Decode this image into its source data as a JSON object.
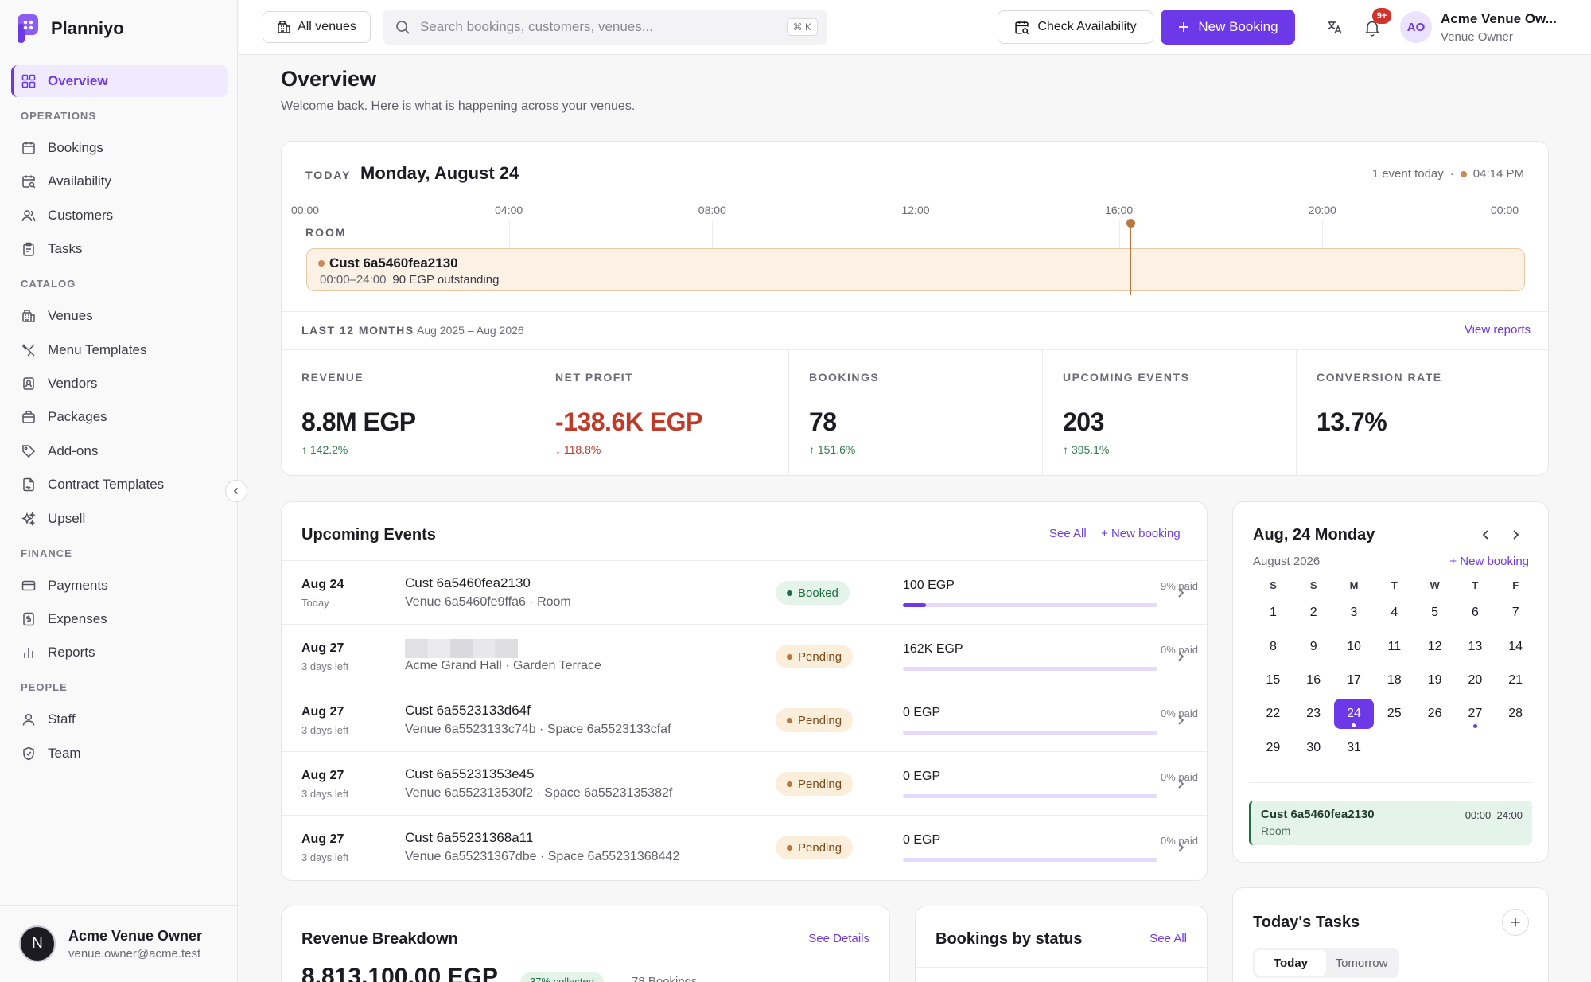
{
  "brand": {
    "name": "Planniyo"
  },
  "sidebar": {
    "overview": "Overview",
    "sections": {
      "operations": "OPERATIONS",
      "catalog": "CATALOG",
      "finance": "FINANCE",
      "people": "PEOPLE"
    },
    "operations": [
      "Bookings",
      "Availability",
      "Customers",
      "Tasks"
    ],
    "catalog": [
      "Venues",
      "Menu Templates",
      "Vendors",
      "Packages",
      "Add-ons",
      "Contract Templates",
      "Upsell"
    ],
    "finance": [
      "Payments",
      "Expenses",
      "Reports"
    ],
    "people": [
      "Staff",
      "Team"
    ],
    "user": {
      "initial": "N",
      "name": "Acme Venue Owner",
      "email": "venue.owner@acme.test"
    }
  },
  "header": {
    "venues_label": "All venues",
    "search_placeholder": "Search bookings, customers, venues...",
    "shortcut": "⌘ K",
    "check_label": "Check Availability",
    "new_label": "New Booking",
    "notif_badge": "9+",
    "avatar": "AO",
    "user_name": "Acme Venue Ow...",
    "user_role": "Venue Owner"
  },
  "page": {
    "title": "Overview",
    "subtitle": "Welcome back. Here is what is happening across your venues."
  },
  "today": {
    "label": "TODAY",
    "date": "Monday, August 24",
    "events": "1 event today",
    "time": "04:14 PM",
    "hours": [
      "00:00",
      "04:00",
      "08:00",
      "12:00",
      "16:00",
      "20:00",
      "00:00"
    ],
    "room": "ROOM",
    "event": {
      "name": "Cust 6a5460fea2130",
      "time": "00:00–24:00",
      "outstanding": "90 EGP outstanding"
    },
    "now_fraction": 0.676
  },
  "range": {
    "label": "LAST 12 MONTHS",
    "value": "Aug 2025 – Aug 2026",
    "link": "View reports"
  },
  "kpis": [
    {
      "label": "REVENUE",
      "value": "8.8M EGP",
      "change": "142.2%",
      "dir": "up"
    },
    {
      "label": "NET PROFIT",
      "value": "-138.6K EGP",
      "change": "118.8%",
      "dir": "down"
    },
    {
      "label": "BOOKINGS",
      "value": "78",
      "change": "151.6%",
      "dir": "up"
    },
    {
      "label": "UPCOMING EVENTS",
      "value": "203",
      "change": "395.1%",
      "dir": "up"
    },
    {
      "label": "CONVERSION RATE",
      "value": "13.7%",
      "change": "",
      "dir": ""
    }
  ],
  "upcoming": {
    "title": "Upcoming Events",
    "see_all": "See All",
    "new": "New booking",
    "rows": [
      {
        "date": "Aug 24",
        "rel": "Today",
        "customer": "Cust 6a5460fea2130",
        "venue": "Venue 6a5460fe9ffa6 · Room",
        "status": "Booked",
        "amount": "100 EGP",
        "paid": "9% paid",
        "paid_fraction": 0.09
      },
      {
        "date": "Aug 27",
        "rel": "3 days left",
        "customer": "",
        "venue": "Acme Grand Hall · Garden Terrace",
        "status": "Pending",
        "amount": "162K EGP",
        "paid": "0% paid",
        "paid_fraction": 0
      },
      {
        "date": "Aug 27",
        "rel": "3 days left",
        "customer": "Cust 6a5523133d64f",
        "venue": "Venue 6a5523133c74b · Space 6a5523133cfaf",
        "status": "Pending",
        "amount": "0 EGP",
        "paid": "0% paid",
        "paid_fraction": 0
      },
      {
        "date": "Aug 27",
        "rel": "3 days left",
        "customer": "Cust 6a55231353e45",
        "venue": "Venue 6a552313530f2 · Space 6a5523135382f",
        "status": "Pending",
        "amount": "0 EGP",
        "paid": "0% paid",
        "paid_fraction": 0
      },
      {
        "date": "Aug 27",
        "rel": "3 days left",
        "customer": "Cust 6a55231368a11",
        "venue": "Venue 6a55231367dbe · Space 6a55231368442",
        "status": "Pending",
        "amount": "0 EGP",
        "paid": "0% paid",
        "paid_fraction": 0
      }
    ]
  },
  "calendar": {
    "title": "Aug, 24 Monday",
    "month": "August 2026",
    "new": "New booking",
    "weekdays": [
      "S",
      "S",
      "M",
      "T",
      "W",
      "T",
      "F"
    ],
    "weeks": [
      [
        "1",
        "2",
        "3",
        "4",
        "5",
        "6",
        "7"
      ],
      [
        "8",
        "9",
        "10",
        "11",
        "12",
        "13",
        "14"
      ],
      [
        "15",
        "16",
        "17",
        "18",
        "19",
        "20",
        "21"
      ],
      [
        "22",
        "23",
        "24",
        "25",
        "26",
        "27",
        "28"
      ],
      [
        "29",
        "30",
        "31",
        "",
        "",
        "",
        ""
      ]
    ],
    "selected": "24",
    "event_days": [
      "24",
      "27"
    ],
    "event": {
      "name": "Cust 6a5460fea2130",
      "space": "Room",
      "time": "00:00–24:00"
    }
  },
  "revenue": {
    "title": "Revenue Breakdown",
    "see": "See Details",
    "amount": "8,813,100.00 EGP",
    "collected": "37% collected",
    "bookings": "78 Bookings"
  },
  "bookings_status": {
    "title": "Bookings by status",
    "see": "See All"
  },
  "tasks": {
    "title": "Today's Tasks",
    "tabs": [
      "Today",
      "Tomorrow"
    ]
  },
  "colors": {
    "accent": "#6d39e8",
    "positive": "#2e7d4f",
    "negative": "#c03a28",
    "booked": "#1f6d41",
    "pending": "#b9763f"
  }
}
